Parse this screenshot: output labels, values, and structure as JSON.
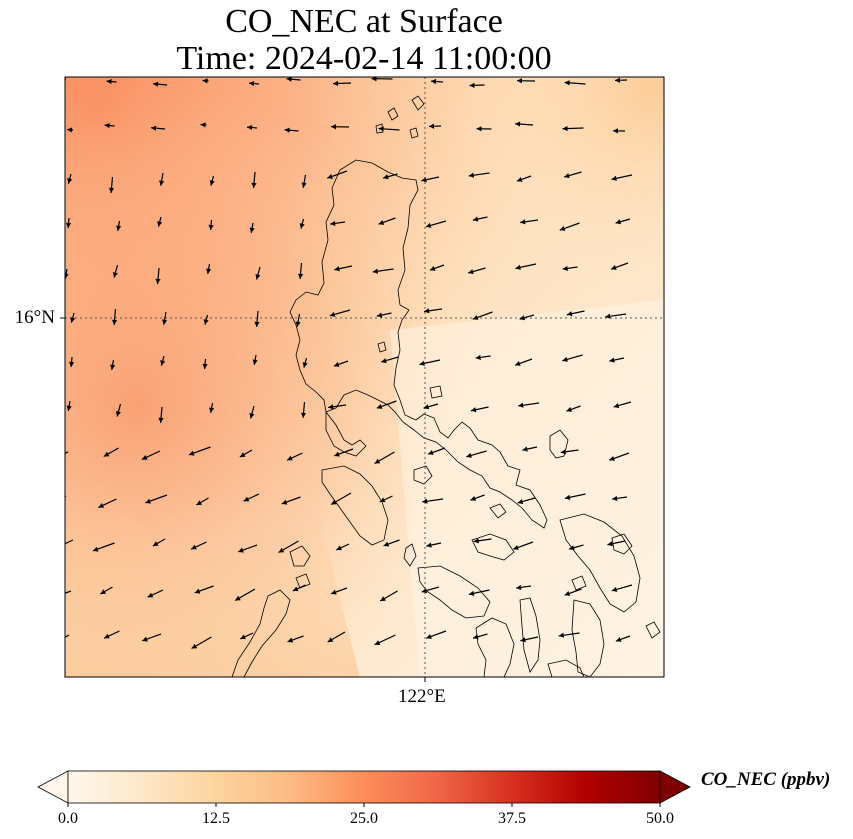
{
  "title": {
    "line1": "CO_NEC at Surface",
    "line2": "Time: 2024-02-14 11:00:00"
  },
  "map": {
    "lat_label": "16°N",
    "lon_label": "122°E",
    "gridlines": "dotted"
  },
  "colorbar": {
    "label": "CO_NEC (ppbv)",
    "colormap": "OrRd",
    "range": [
      0.0,
      50.0
    ],
    "extend": "both",
    "ticks": [
      "0.0",
      "12.5",
      "25.0",
      "37.5",
      "50.0"
    ],
    "colors": [
      "#fff7ec",
      "#fdd49e",
      "#fc8d59",
      "#d7301f",
      "#7f0000"
    ]
  }
}
